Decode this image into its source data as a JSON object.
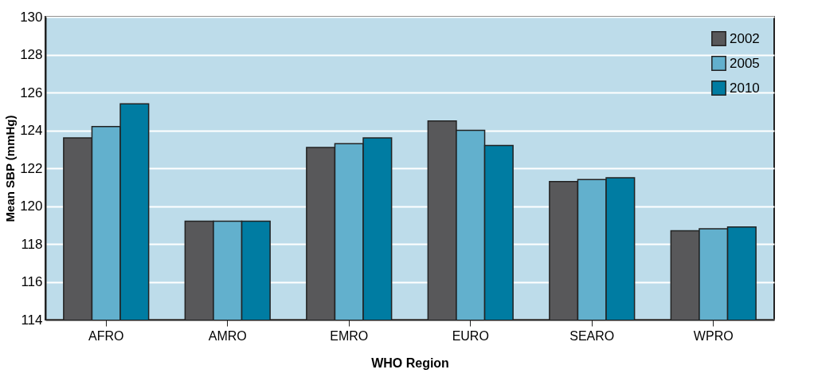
{
  "chart_data": {
    "type": "bar",
    "xlabel": "WHO Region",
    "ylabel": "Mean SBP (mmHg)",
    "categories": [
      "AFRO",
      "AMRO",
      "EMRO",
      "EURO",
      "SEARO",
      "WPRO"
    ],
    "series": [
      {
        "name": "2002",
        "color": "#58585a",
        "values": [
          123.6,
          119.2,
          123.1,
          124.5,
          121.3,
          118.7
        ]
      },
      {
        "name": "2005",
        "color": "#62b0cd",
        "values": [
          124.2,
          119.2,
          123.3,
          124.0,
          121.4,
          118.8
        ]
      },
      {
        "name": "2010",
        "color": "#007ca2",
        "values": [
          125.4,
          119.2,
          123.6,
          123.2,
          121.5,
          118.9
        ]
      }
    ],
    "ylim": [
      114,
      130
    ],
    "yticks": [
      114,
      116,
      118,
      120,
      122,
      124,
      126,
      128,
      130
    ],
    "grid": "y",
    "legend": "top right"
  }
}
